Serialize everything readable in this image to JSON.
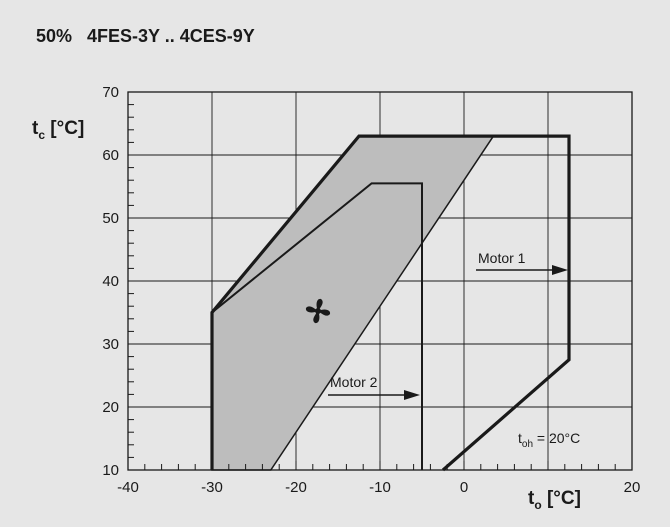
{
  "chart_data": {
    "type": "line",
    "title": "50%   4FES-3Y .. 4CES-9Y",
    "xlabel": {
      "main": "t",
      "sub": "o",
      "unit": " [°C]"
    },
    "ylabel": {
      "main": "t",
      "sub": "c",
      "unit": " [°C]"
    },
    "xlim": [
      -40,
      20
    ],
    "ylim": [
      10,
      70
    ],
    "xticks": [
      -40,
      -30,
      -20,
      -10,
      0,
      20
    ],
    "yticks": [
      10,
      20,
      30,
      40,
      50,
      60,
      70
    ],
    "grid": true,
    "series": [
      {
        "name": "Motor 1",
        "points": [
          [
            -30,
            10
          ],
          [
            -30,
            35
          ],
          [
            -12.5,
            63
          ],
          [
            12.5,
            63
          ],
          [
            12.5,
            27.5
          ],
          [
            -2.5,
            10
          ]
        ]
      },
      {
        "name": "Motor 2",
        "points": [
          [
            -30,
            10
          ],
          [
            -30,
            35
          ],
          [
            -11,
            55.5
          ],
          [
            -5,
            55.5
          ],
          [
            -5,
            10
          ]
        ]
      },
      {
        "name": "",
        "fill": "#bdbdbd",
        "points": [
          [
            -30,
            10
          ],
          [
            -30,
            35
          ],
          [
            -12.5,
            63
          ],
          [
            3.5,
            63
          ],
          [
            -23,
            10
          ]
        ]
      }
    ],
    "annotations": [
      {
        "text": "Motor 1",
        "arrow_to": [
          12.5,
          41.5
        ]
      },
      {
        "text": "Motor 2",
        "arrow_to": [
          -5,
          22
        ]
      },
      {
        "text_main": "t",
        "text_sub": "oh",
        "text_rest": " = 20°C"
      }
    ],
    "icons": [
      "fan-icon"
    ]
  }
}
